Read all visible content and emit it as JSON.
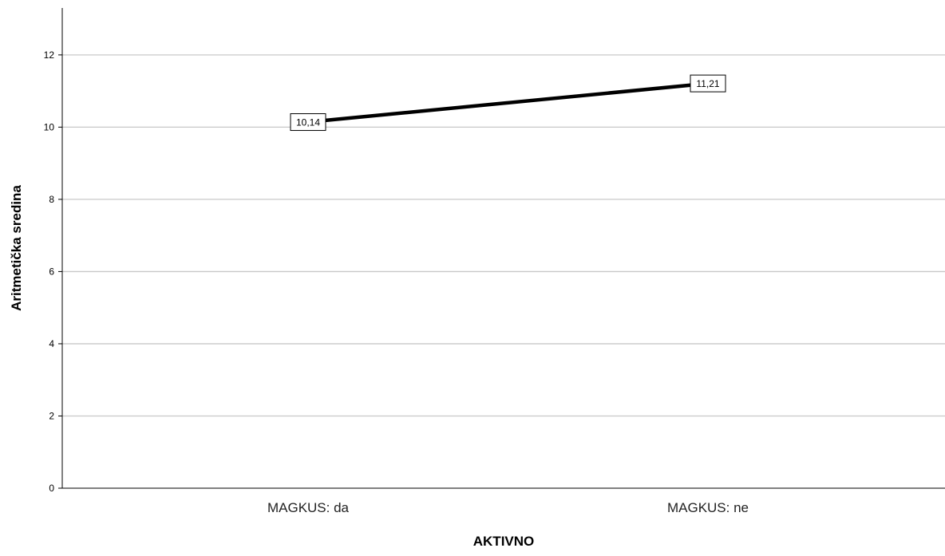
{
  "chart_data": {
    "type": "line",
    "title": "",
    "xlabel": "AKTIVNO",
    "ylabel": "Aritmetička sredina",
    "categories": [
      "MAGKUS: da",
      "MAGKUS: ne"
    ],
    "series": [
      {
        "values": [
          10.14,
          11.21
        ],
        "labels": [
          "10,14",
          "11,21"
        ]
      }
    ],
    "yticks": [
      0,
      2,
      4,
      6,
      8,
      10,
      12
    ],
    "ytick_labels": [
      "0",
      "2",
      "4",
      "6",
      "8",
      "10",
      "12"
    ],
    "ylim": [
      0,
      13.3
    ],
    "grid": true,
    "legend": "none",
    "colors": {
      "line": "#000000",
      "grid": "#c8c8c8",
      "axis": "#000000",
      "label_box_fill": "#ffffff",
      "label_box_stroke": "#000000"
    }
  }
}
